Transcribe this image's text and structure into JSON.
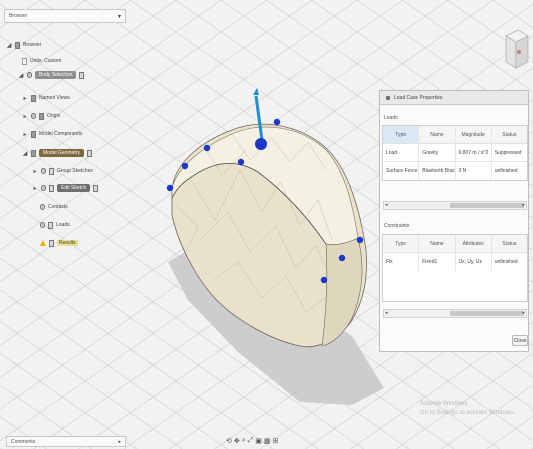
{
  "browser": {
    "dropdown_label": "Browser",
    "tree": [
      {
        "label": "Browser"
      },
      {
        "label": "Units: Custom"
      },
      {
        "label": "Body Selection"
      },
      {
        "label": "Named Views"
      },
      {
        "label": "Origin"
      },
      {
        "label": "Model Components"
      },
      {
        "label": "Model Geometry"
      },
      {
        "label": "Group Sketches"
      },
      {
        "label": "Edit Sketch"
      },
      {
        "label": "Contacts"
      },
      {
        "label": "Loads"
      },
      {
        "label": "Results"
      }
    ]
  },
  "panel": {
    "title": "Load Case Properties",
    "loads_label": "Loads",
    "loads_headers": [
      "Type",
      "Name",
      "Magnitude",
      "Status"
    ],
    "loads_rows": [
      [
        "Load",
        "Gravity",
        "9.807 m / s^2",
        "Suppressed"
      ],
      [
        "Surface Force",
        "Bluetooth Bracket",
        "3 N",
        "unfinished"
      ]
    ],
    "constraints_label": "Constraints",
    "constraints_headers": [
      "Type",
      "Name",
      "Attributes",
      "Status"
    ],
    "constraints_rows": [
      [
        "Fix",
        "Fixed1",
        "Ux, Uy, Uz",
        "unfinished"
      ]
    ],
    "ok_label": "Close"
  },
  "watermark": {
    "line1": "Activate Windows",
    "line2": "Go to Settings to activate Windows."
  },
  "bottom": {
    "dropdown_label": "Comments",
    "toolbar_icons": [
      "orbit-icon",
      "pan-icon",
      "zoom-icon",
      "fit-icon",
      "display-icon",
      "grid-icon",
      "viewports-icon"
    ]
  },
  "colors": {
    "model": "#ece5d0",
    "selected_face": "#f1eddb",
    "handle": "#1c36c8",
    "arrow": "#1f8fd0",
    "shadow": "#c9c9c9"
  }
}
